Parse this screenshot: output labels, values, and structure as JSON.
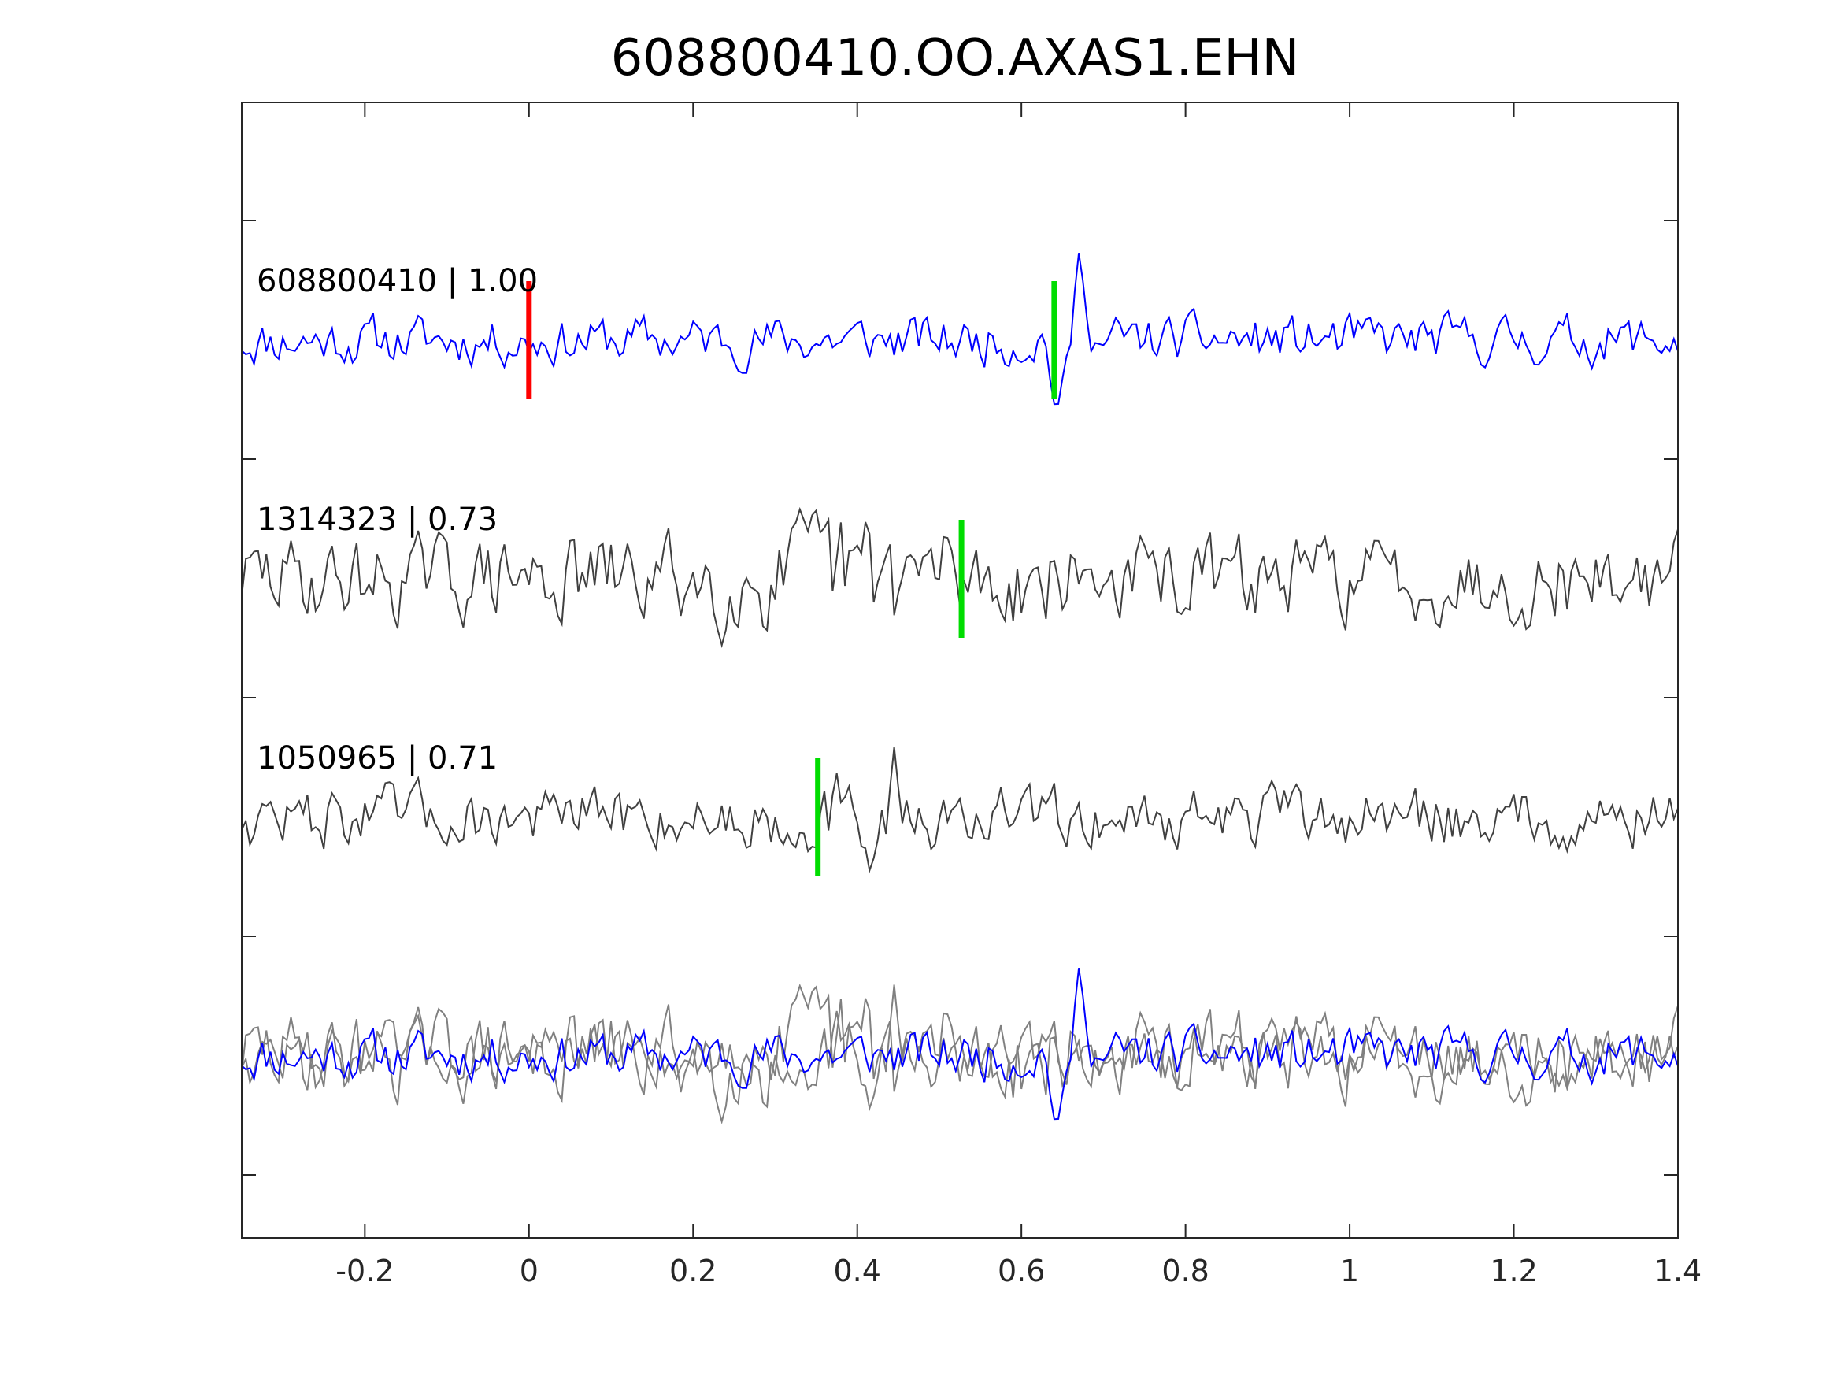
{
  "chart_data": {
    "type": "line",
    "title": "608800410.OO.AXAS1.EHN",
    "xlabel": "",
    "ylabel": "",
    "xlim": [
      -0.35,
      1.4
    ],
    "x_ticks": [
      "-0.2",
      "0",
      "0.2",
      "0.4",
      "0.6",
      "0.8",
      "1",
      "1.2",
      "1.4"
    ],
    "x_tick_values": [
      -0.2,
      0,
      0.2,
      0.4,
      0.6,
      0.8,
      1.0,
      1.2,
      1.4
    ],
    "grid": false,
    "legend": "none",
    "sample_interval": 0.005,
    "traces": [
      {
        "label": "608800410 | 1.00",
        "color": "#0000ff",
        "picks": [
          {
            "type": "P",
            "x": 0.0,
            "color": "#ff0000"
          },
          {
            "type": "S",
            "x": 0.64,
            "color": "#00dd00"
          }
        ]
      },
      {
        "label": "1314323 | 0.73",
        "color": "#404040",
        "picks": [
          {
            "type": "S",
            "x": 0.527,
            "color": "#00dd00"
          }
        ]
      },
      {
        "label": "1050965 | 0.71",
        "color": "#404040",
        "picks": [
          {
            "type": "S",
            "x": 0.352,
            "color": "#00dd00"
          }
        ]
      }
    ],
    "overlay_colors": {
      "reference": "#0000ff",
      "others": "#808080"
    }
  }
}
